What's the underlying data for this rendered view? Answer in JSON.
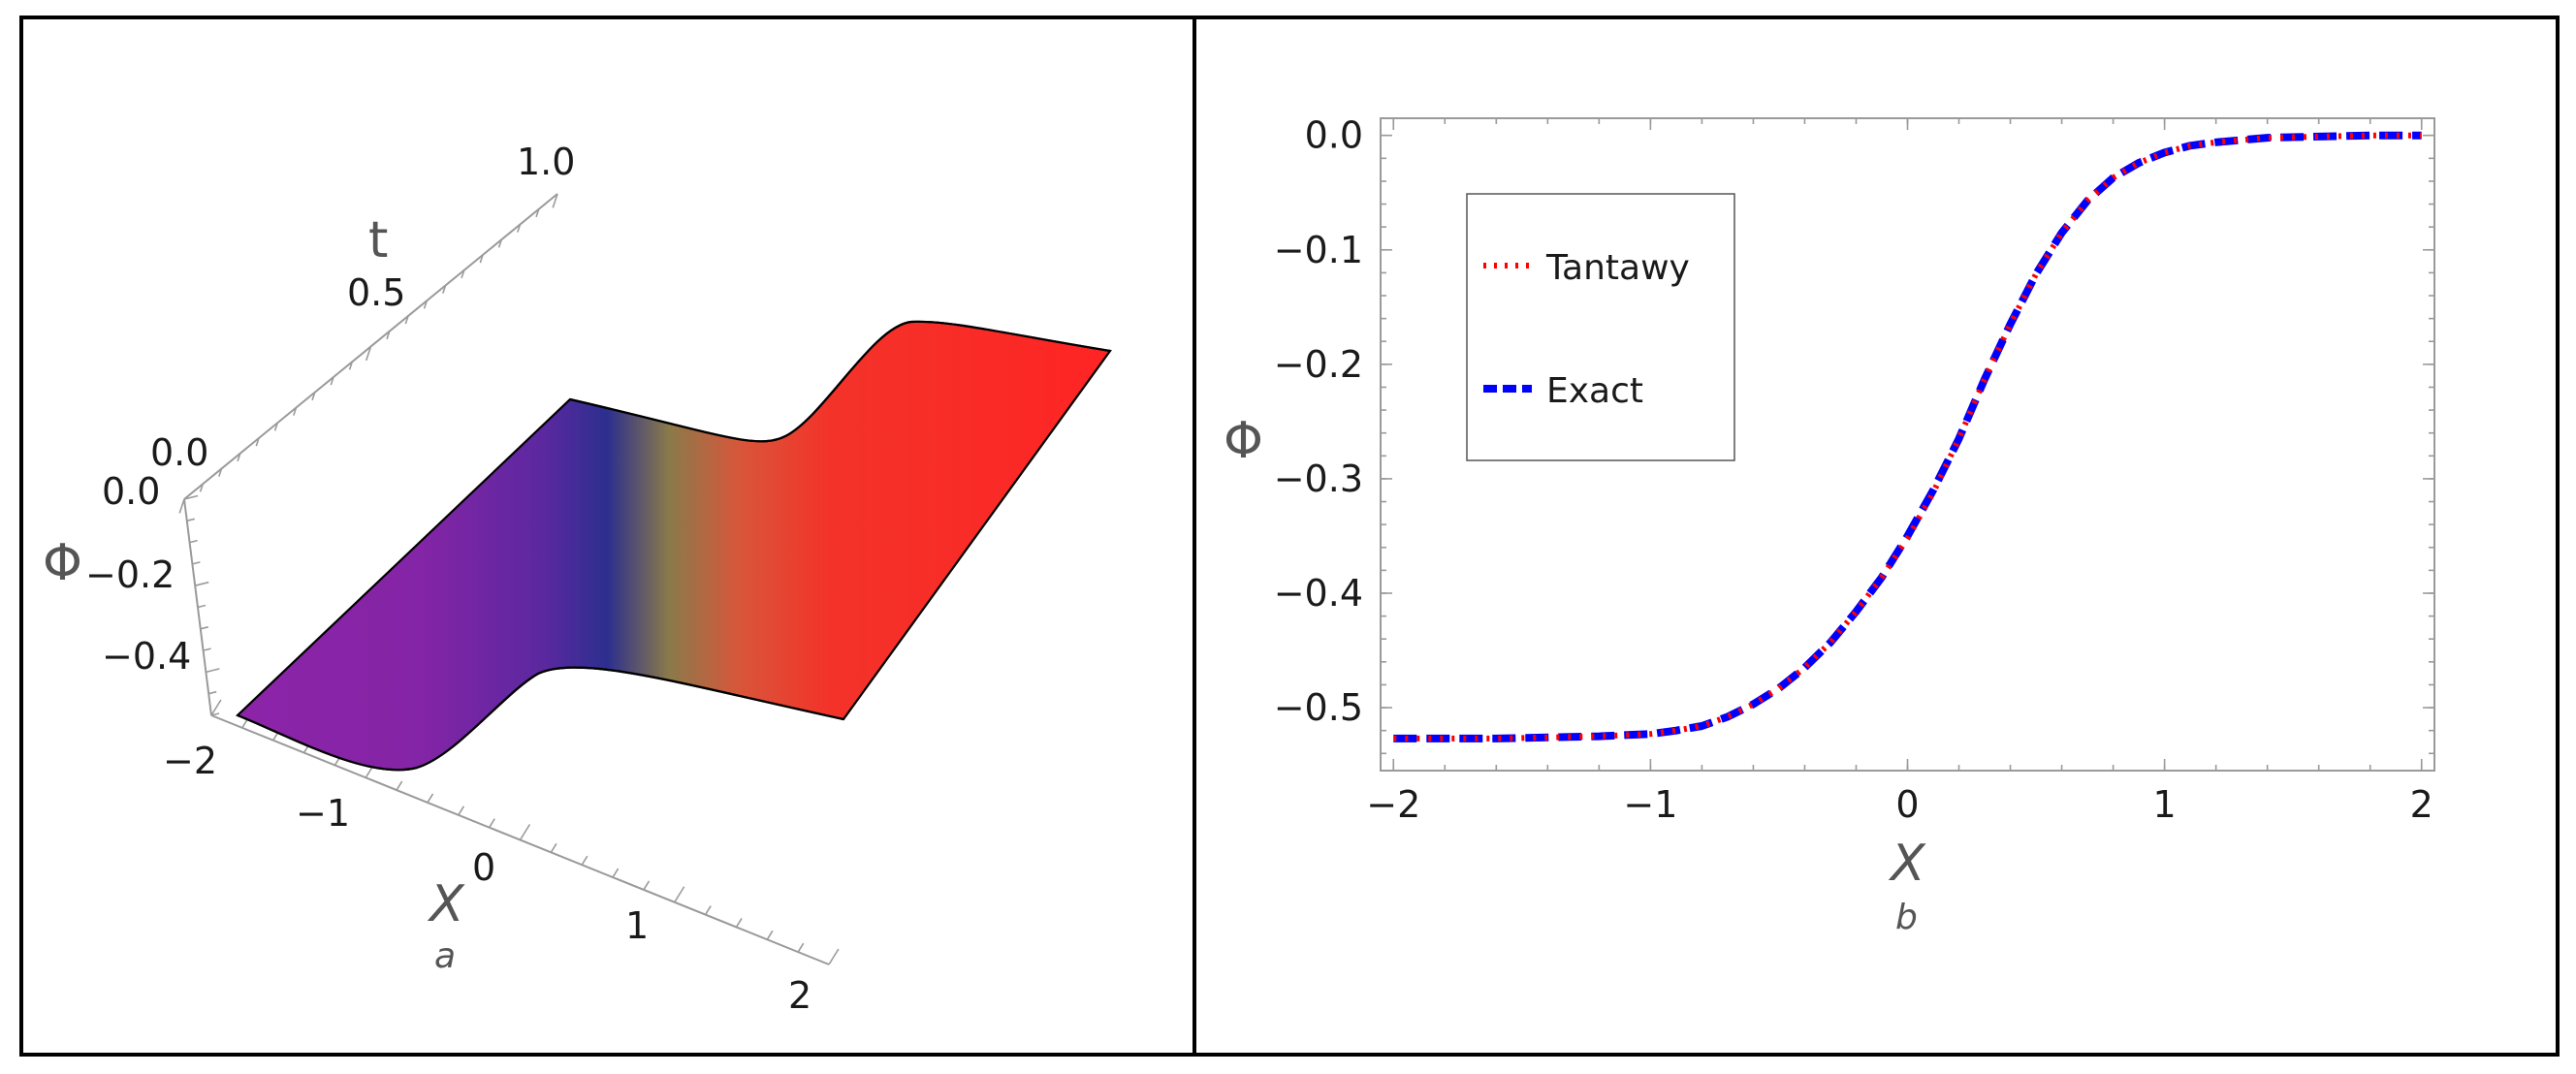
{
  "panel_a": {
    "axis_labels": {
      "x": "X",
      "t": "t",
      "phi": "Φ"
    },
    "x_ticks": [
      "−2",
      "−1",
      "0",
      "1",
      "2"
    ],
    "t_ticks": [
      "0.0",
      "0.5",
      "1.0"
    ],
    "phi_ticks": [
      "0.0",
      "−0.2",
      "−0.4"
    ],
    "sublabel": "a"
  },
  "panel_b": {
    "xlabel": "X",
    "ylabel": "Φ",
    "sublabel": "b",
    "x_ticks": [
      "−2",
      "−1",
      "0",
      "1",
      "2"
    ],
    "y_ticks": [
      "0.0",
      "−0.1",
      "−0.2",
      "−0.3",
      "−0.4",
      "−0.5"
    ],
    "legend": [
      {
        "label": "Tantawy",
        "style": "dotted",
        "color": "#ff0000"
      },
      {
        "label": "Exact",
        "style": "dashed",
        "color": "#0000ff"
      }
    ]
  },
  "chart_data": [
    {
      "type": "area",
      "subtype": "surface3d",
      "sublabel": "a",
      "xlabel": "X",
      "ylabel": "t",
      "zlabel": "Φ",
      "xlim": [
        -2,
        2
      ],
      "ylim": [
        0,
        1
      ],
      "zlim": [
        -0.53,
        0.0
      ],
      "x": [
        -2.0,
        -1.6,
        -1.2,
        -1.0,
        -0.8,
        -0.6,
        -0.4,
        -0.2,
        0.0,
        0.2,
        0.4,
        0.6,
        0.8,
        1.0,
        1.2,
        1.6,
        2.0
      ],
      "z": [
        -0.528,
        -0.527,
        -0.525,
        -0.522,
        -0.515,
        -0.5,
        -0.47,
        -0.42,
        -0.36,
        -0.28,
        -0.2,
        -0.12,
        -0.06,
        -0.025,
        -0.01,
        -0.002,
        0.0
      ],
      "colors": [
        "#8a23a6",
        "#2a2c8c",
        "#b08a3a",
        "#ff2a22"
      ]
    },
    {
      "type": "line",
      "sublabel": "b",
      "xlabel": "X",
      "ylabel": "Φ",
      "xlim": [
        -2.05,
        2.05
      ],
      "ylim": [
        -0.555,
        0.015
      ],
      "x": [
        -2.0,
        -1.8,
        -1.6,
        -1.4,
        -1.2,
        -1.0,
        -0.9,
        -0.8,
        -0.7,
        -0.6,
        -0.5,
        -0.4,
        -0.3,
        -0.2,
        -0.1,
        0.0,
        0.1,
        0.2,
        0.3,
        0.4,
        0.5,
        0.6,
        0.7,
        0.8,
        0.9,
        1.0,
        1.1,
        1.2,
        1.4,
        1.6,
        1.8,
        2.0
      ],
      "series": [
        {
          "name": "Tantawy",
          "color": "#ff0000",
          "style": "dotted",
          "values": [
            -0.527,
            -0.527,
            -0.527,
            -0.526,
            -0.525,
            -0.523,
            -0.52,
            -0.516,
            -0.508,
            -0.497,
            -0.483,
            -0.465,
            -0.443,
            -0.416,
            -0.386,
            -0.352,
            -0.312,
            -0.265,
            -0.213,
            -0.165,
            -0.121,
            -0.085,
            -0.057,
            -0.037,
            -0.024,
            -0.015,
            -0.009,
            -0.006,
            -0.002,
            -0.001,
            0.0,
            0.0
          ]
        },
        {
          "name": "Exact",
          "color": "#0000ff",
          "style": "dashed",
          "values": [
            -0.527,
            -0.527,
            -0.527,
            -0.526,
            -0.525,
            -0.523,
            -0.52,
            -0.516,
            -0.508,
            -0.497,
            -0.483,
            -0.465,
            -0.443,
            -0.416,
            -0.386,
            -0.35,
            -0.31,
            -0.265,
            -0.213,
            -0.165,
            -0.121,
            -0.085,
            -0.057,
            -0.037,
            -0.024,
            -0.015,
            -0.009,
            -0.006,
            -0.002,
            -0.001,
            0.0,
            0.0
          ]
        }
      ]
    }
  ]
}
